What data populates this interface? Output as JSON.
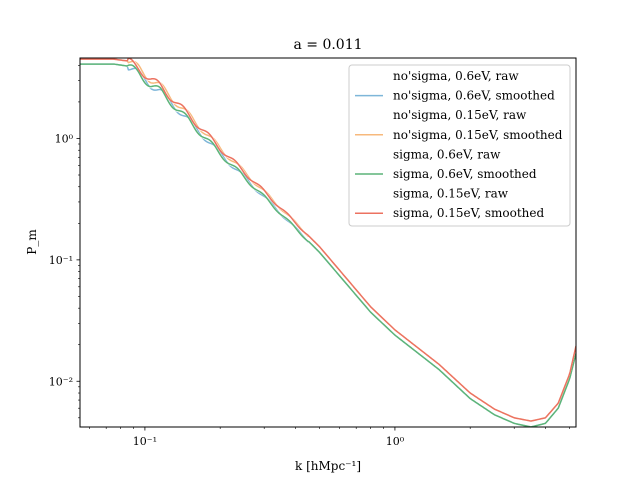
{
  "chart_data": {
    "type": "line",
    "title": "a = 0.011",
    "xlabel": "k [hMpc⁻¹]",
    "ylabel": "P_m",
    "xscale": "log",
    "yscale": "log",
    "xlim": [
      0.055,
      5.3
    ],
    "ylim": [
      0.0042,
      4.6
    ],
    "grid": false,
    "legend_position": "top-right",
    "x_ticks": [
      {
        "value": 0.1,
        "label": "10⁻¹"
      },
      {
        "value": 1.0,
        "label": "10⁰"
      }
    ],
    "y_ticks": [
      {
        "value": 0.01,
        "label": "10⁻²"
      },
      {
        "value": 0.1,
        "label": "10⁻¹"
      },
      {
        "value": 1.0,
        "label": "10⁰"
      }
    ],
    "series": [
      {
        "name": "no'sigma, 0.6eV, raw",
        "color": "#ffffff",
        "group": "lower",
        "x": [
          0.055,
          0.075,
          0.085,
          0.095,
          0.105,
          0.115,
          0.15,
          0.2,
          0.3,
          0.5,
          0.8,
          1.0,
          1.5,
          2.0,
          2.5,
          3.0,
          3.5,
          4.0,
          4.5,
          5.0,
          5.3
        ],
        "y": [
          4.1,
          4.1,
          3.95,
          3.4,
          2.8,
          2.45,
          1.4,
          0.75,
          0.33,
          0.115,
          0.037,
          0.024,
          0.0125,
          0.0072,
          0.0053,
          0.0045,
          0.0042,
          0.0045,
          0.006,
          0.0105,
          0.017
        ]
      },
      {
        "name": "no'sigma, 0.6eV, smoothed",
        "color": "#7eb6d9",
        "group": "lower",
        "x": [
          0.055,
          0.075,
          0.085,
          0.095,
          0.105,
          0.115,
          0.15,
          0.2,
          0.3,
          0.5,
          0.8,
          1.0,
          1.5,
          2.0,
          2.5,
          3.0,
          3.5,
          4.0,
          4.5,
          5.0,
          5.3
        ],
        "y": [
          4.1,
          4.1,
          3.95,
          3.4,
          2.8,
          2.45,
          1.4,
          0.75,
          0.33,
          0.115,
          0.037,
          0.024,
          0.0125,
          0.0072,
          0.0053,
          0.0045,
          0.0042,
          0.0045,
          0.006,
          0.0105,
          0.017
        ]
      },
      {
        "name": "no'sigma, 0.15eV, raw",
        "color": "#ffffff",
        "group": "upper",
        "x": [
          0.055,
          0.075,
          0.085,
          0.095,
          0.105,
          0.115,
          0.15,
          0.2,
          0.3,
          0.5,
          0.8,
          1.0,
          1.5,
          2.0,
          2.5,
          3.0,
          3.5,
          4.0,
          4.5,
          5.0,
          5.3
        ],
        "y": [
          4.5,
          4.5,
          4.35,
          3.75,
          3.1,
          2.7,
          1.55,
          0.83,
          0.365,
          0.128,
          0.041,
          0.0265,
          0.0138,
          0.008,
          0.0059,
          0.005,
          0.0047,
          0.005,
          0.0066,
          0.0115,
          0.0195
        ]
      },
      {
        "name": "no'sigma, 0.15eV, smoothed",
        "color": "#f7b97c",
        "group": "upper",
        "x": [
          0.055,
          0.075,
          0.085,
          0.095,
          0.105,
          0.115,
          0.15,
          0.2,
          0.3,
          0.5,
          0.8,
          1.0,
          1.5,
          2.0,
          2.5,
          3.0,
          3.5,
          4.0,
          4.5,
          5.0,
          5.3
        ],
        "y": [
          4.5,
          4.5,
          4.35,
          3.75,
          3.1,
          2.7,
          1.55,
          0.83,
          0.365,
          0.128,
          0.041,
          0.0265,
          0.0138,
          0.008,
          0.0059,
          0.005,
          0.0047,
          0.005,
          0.0066,
          0.0115,
          0.0195
        ]
      },
      {
        "name": "sigma, 0.6eV, raw",
        "color": "#ffffff",
        "group": "lower",
        "x": [
          0.055,
          0.075,
          0.085,
          0.095,
          0.105,
          0.115,
          0.15,
          0.2,
          0.3,
          0.5,
          0.8,
          1.0,
          1.5,
          2.0,
          2.5,
          3.0,
          3.5,
          4.0,
          4.5,
          5.0,
          5.3
        ],
        "y": [
          4.1,
          4.1,
          3.95,
          3.4,
          2.8,
          2.45,
          1.4,
          0.75,
          0.33,
          0.115,
          0.037,
          0.024,
          0.0125,
          0.0072,
          0.0053,
          0.0045,
          0.0042,
          0.0045,
          0.006,
          0.0105,
          0.017
        ]
      },
      {
        "name": "sigma, 0.6eV, smoothed",
        "color": "#5cb478",
        "group": "lower",
        "x": [
          0.055,
          0.075,
          0.085,
          0.095,
          0.105,
          0.115,
          0.15,
          0.2,
          0.3,
          0.5,
          0.8,
          1.0,
          1.5,
          2.0,
          2.5,
          3.0,
          3.5,
          4.0,
          4.5,
          5.0,
          5.3
        ],
        "y": [
          4.1,
          4.1,
          3.95,
          3.4,
          2.8,
          2.45,
          1.4,
          0.75,
          0.33,
          0.115,
          0.037,
          0.024,
          0.0125,
          0.0072,
          0.0053,
          0.0045,
          0.0042,
          0.0045,
          0.006,
          0.0105,
          0.017
        ]
      },
      {
        "name": "sigma, 0.15eV, raw",
        "color": "#ffffff",
        "group": "upper",
        "x": [
          0.055,
          0.075,
          0.085,
          0.095,
          0.105,
          0.115,
          0.15,
          0.2,
          0.3,
          0.5,
          0.8,
          1.0,
          1.5,
          2.0,
          2.5,
          3.0,
          3.5,
          4.0,
          4.5,
          5.0,
          5.3
        ],
        "y": [
          4.5,
          4.5,
          4.35,
          3.75,
          3.1,
          2.7,
          1.55,
          0.83,
          0.365,
          0.128,
          0.041,
          0.0265,
          0.0138,
          0.008,
          0.0059,
          0.005,
          0.0047,
          0.005,
          0.0066,
          0.0115,
          0.0195
        ]
      },
      {
        "name": "sigma, 0.15eV, smoothed",
        "color": "#ec7260",
        "group": "upper",
        "x": [
          0.055,
          0.075,
          0.085,
          0.095,
          0.105,
          0.115,
          0.15,
          0.2,
          0.3,
          0.5,
          0.8,
          1.0,
          1.5,
          2.0,
          2.5,
          3.0,
          3.5,
          4.0,
          4.5,
          5.0,
          5.3
        ],
        "y": [
          4.5,
          4.5,
          4.35,
          3.75,
          3.1,
          2.7,
          1.55,
          0.83,
          0.365,
          0.128,
          0.041,
          0.0265,
          0.0138,
          0.008,
          0.0059,
          0.005,
          0.0047,
          0.005,
          0.0066,
          0.0115,
          0.0195
        ]
      }
    ]
  }
}
